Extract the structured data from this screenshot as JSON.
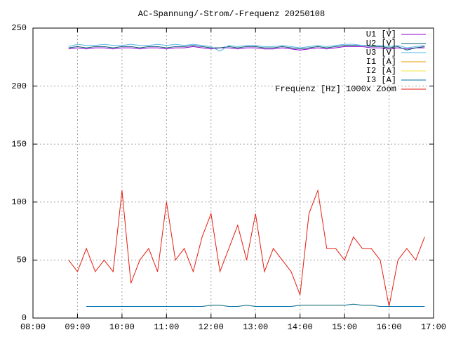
{
  "chart_data": {
    "type": "line",
    "title": "AC-Spannung/-Strom/-Frequenz 20250108",
    "x": [
      8.8,
      9.0,
      9.2,
      9.4,
      9.6,
      9.8,
      10.0,
      10.2,
      10.4,
      10.6,
      10.8,
      11.0,
      11.2,
      11.4,
      11.6,
      11.8,
      12.0,
      12.2,
      12.4,
      12.6,
      12.8,
      13.0,
      13.2,
      13.4,
      13.6,
      13.8,
      14.0,
      14.2,
      14.4,
      14.6,
      14.8,
      15.0,
      15.2,
      15.4,
      15.6,
      15.8,
      16.0,
      16.2,
      16.4,
      16.6,
      16.8
    ],
    "series": [
      {
        "name": "U1 [V]",
        "color": "#9400d3",
        "values": [
          232,
          233,
          232,
          233,
          233,
          232,
          233,
          233,
          232,
          233,
          233,
          232,
          233,
          233,
          234,
          233,
          232,
          233,
          233,
          232,
          233,
          233,
          232,
          232,
          233,
          232,
          231,
          232,
          233,
          232,
          233,
          234,
          234,
          234,
          233,
          233,
          232,
          233,
          232,
          233,
          233
        ]
      },
      {
        "name": "U2 [V]",
        "color": "#0a5a6e",
        "values": [
          233,
          234,
          233,
          234,
          234,
          233,
          234,
          234,
          233,
          234,
          234,
          233,
          234,
          234,
          235,
          234,
          233,
          233,
          234,
          233,
          234,
          234,
          233,
          233,
          234,
          233,
          232,
          233,
          234,
          233,
          234,
          235,
          235,
          235,
          234,
          234,
          233,
          234,
          231,
          233,
          234
        ]
      },
      {
        "name": "U3 [V]",
        "color": "#56b4e9",
        "values": [
          234,
          236,
          235,
          235,
          236,
          235,
          235,
          236,
          235,
          235,
          236,
          235,
          236,
          235,
          236,
          235,
          234,
          230,
          235,
          234,
          235,
          235,
          234,
          234,
          235,
          234,
          233,
          234,
          235,
          234,
          235,
          236,
          236,
          235,
          235,
          235,
          234,
          235,
          233,
          234,
          235
        ]
      },
      {
        "name": "I1 [A]",
        "color": "#e69f00",
        "values": [
          null,
          null,
          10,
          10,
          10,
          10,
          10,
          10,
          10,
          10,
          10,
          10,
          10,
          10,
          10,
          10,
          11,
          11,
          10,
          10,
          11,
          10,
          10,
          10,
          10,
          10,
          11,
          11,
          11,
          11,
          11,
          11,
          12,
          11,
          11,
          10,
          10,
          10,
          10,
          10,
          10
        ]
      },
      {
        "name": "I2 [A]",
        "color": "#f0e442",
        "values": [
          null,
          null,
          10,
          10,
          10,
          10,
          10,
          10,
          10,
          10,
          10,
          10,
          10,
          10,
          10,
          10,
          11,
          11,
          10,
          10,
          11,
          10,
          10,
          10,
          10,
          10,
          11,
          11,
          11,
          11,
          11,
          11,
          12,
          11,
          11,
          10,
          10,
          10,
          10,
          10,
          10
        ]
      },
      {
        "name": "I3 [A]",
        "color": "#0072b2",
        "values": [
          null,
          null,
          10,
          10,
          10,
          10,
          10,
          10,
          10,
          10,
          10,
          10,
          10,
          10,
          10,
          10,
          11,
          11,
          10,
          10,
          11,
          10,
          10,
          10,
          10,
          10,
          11,
          11,
          11,
          11,
          11,
          11,
          12,
          11,
          11,
          10,
          10,
          10,
          10,
          10,
          10
        ]
      },
      {
        "name": "Frequenz [Hz] 1000x Zoom",
        "color": "#e51e10",
        "values": [
          50,
          40,
          60,
          40,
          50,
          40,
          110,
          30,
          50,
          60,
          40,
          100,
          50,
          60,
          40,
          70,
          90,
          40,
          60,
          80,
          50,
          90,
          40,
          60,
          50,
          40,
          20,
          90,
          110,
          60,
          60,
          50,
          70,
          60,
          60,
          50,
          10,
          50,
          60,
          50,
          70
        ]
      }
    ],
    "xlim": [
      8,
      17
    ],
    "xticks": [
      {
        "value": 8,
        "label": "08:00"
      },
      {
        "value": 9,
        "label": "09:00"
      },
      {
        "value": 10,
        "label": "10:00"
      },
      {
        "value": 11,
        "label": "11:00"
      },
      {
        "value": 12,
        "label": "12:00"
      },
      {
        "value": 13,
        "label": "13:00"
      },
      {
        "value": 14,
        "label": "14:00"
      },
      {
        "value": 15,
        "label": "15:00"
      },
      {
        "value": 16,
        "label": "16:00"
      },
      {
        "value": 17,
        "label": "17:00"
      }
    ],
    "ylim": [
      0,
      250
    ],
    "yticks": [
      0,
      50,
      100,
      150,
      200,
      250
    ],
    "grid": true,
    "legend": "top-right"
  }
}
